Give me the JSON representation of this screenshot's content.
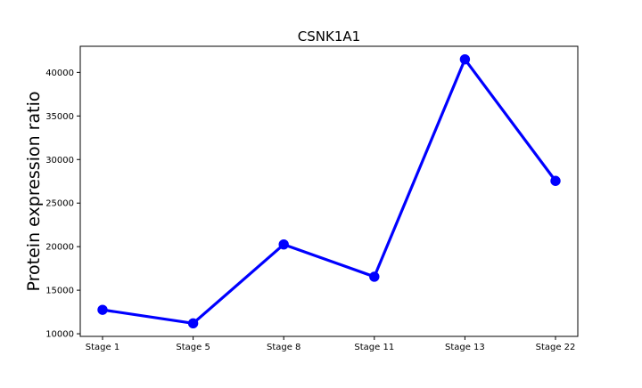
{
  "chart_data": {
    "type": "line",
    "title": "CSNK1A1",
    "xlabel": "",
    "ylabel": "Protein expression ratio",
    "categories": [
      "Stage 1",
      "Stage 5",
      "Stage 8",
      "Stage 11",
      "Stage 13",
      "Stage 22"
    ],
    "series": [
      {
        "values": [
          12750,
          11200,
          20250,
          16550,
          41500,
          27550
        ],
        "color": "#0000ff"
      }
    ],
    "ylim": [
      9700,
      43000
    ],
    "yticks": [
      10000,
      15000,
      20000,
      25000,
      30000,
      35000,
      40000
    ],
    "grid": false,
    "legend": "none"
  }
}
